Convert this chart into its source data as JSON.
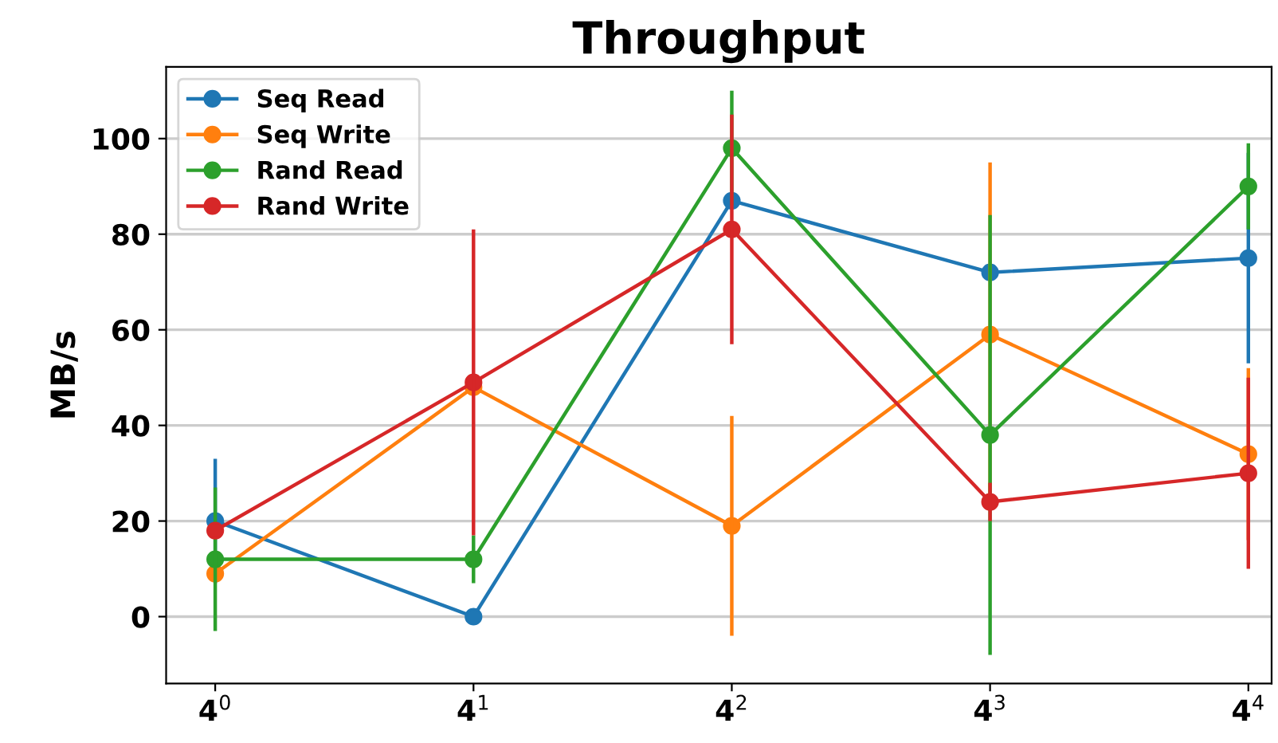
{
  "chart_data": {
    "type": "line",
    "title": "Throughput",
    "ylabel": "MB/s",
    "categories": [
      "4$^{0}$",
      "4$^{1}$",
      "4$^{2}$",
      "4$^{3}$",
      "4$^{4}$"
    ],
    "ylim": [
      -14,
      115
    ],
    "yticks": [
      0,
      20,
      40,
      60,
      80,
      100
    ],
    "grid": "y",
    "legend": "top left",
    "marker": "circle",
    "line_style": "solid",
    "series": [
      {
        "name": "Seq Read",
        "color": "#1f77b4",
        "values": [
          20,
          0,
          87,
          72,
          75
        ],
        "errors": [
          13,
          null,
          null,
          null,
          22
        ]
      },
      {
        "name": "Seq Write",
        "color": "#ff7f0e",
        "values": [
          9,
          48,
          19,
          59,
          34
        ],
        "errors": [
          null,
          null,
          23,
          36,
          18
        ]
      },
      {
        "name": "Rand Read",
        "color": "#2ca02c",
        "values": [
          12,
          12,
          98,
          38,
          90
        ],
        "errors": [
          15,
          5,
          12,
          46,
          9
        ]
      },
      {
        "name": "Rand Write",
        "color": "#d62728",
        "values": [
          18,
          49,
          81,
          24,
          30
        ],
        "errors": [
          null,
          32,
          24,
          4,
          20
        ]
      }
    ]
  }
}
